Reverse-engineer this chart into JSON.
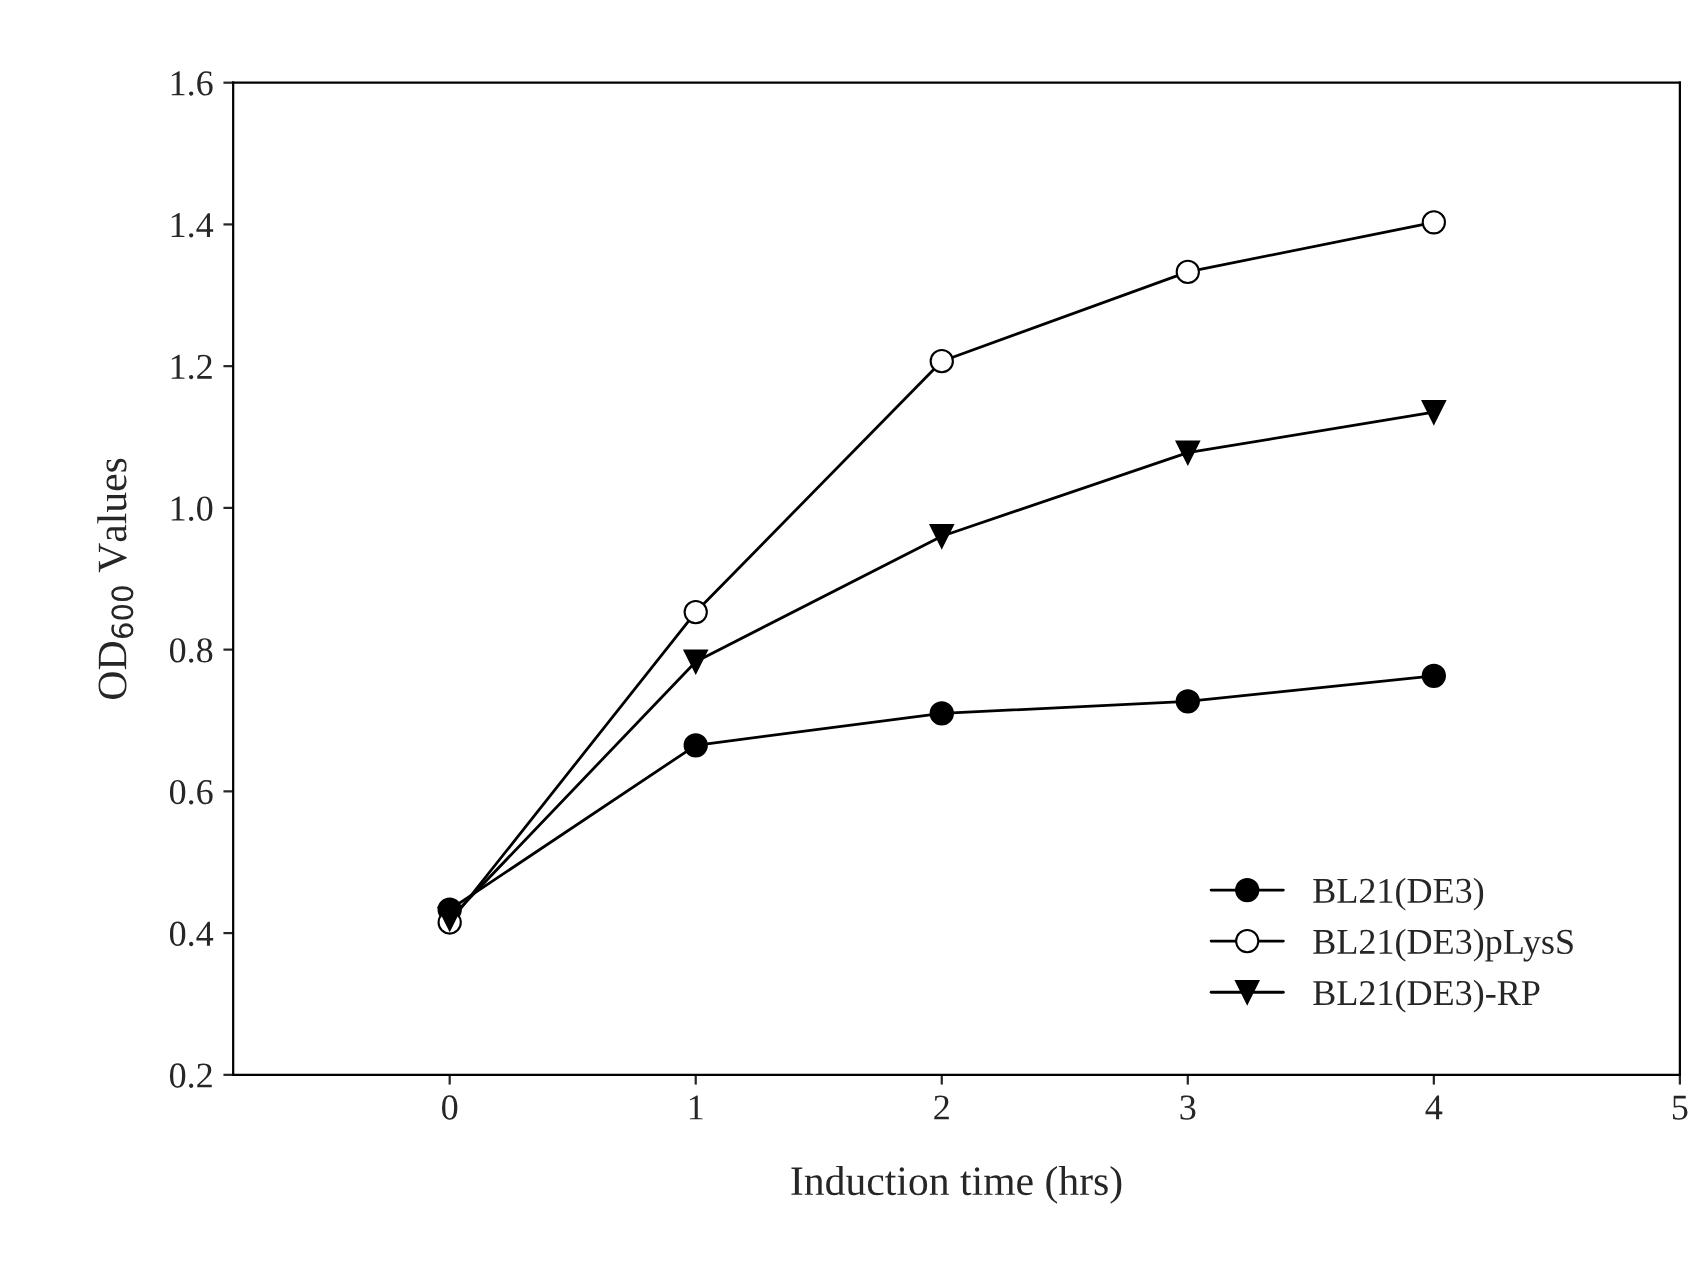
{
  "chart_data": {
    "type": "line",
    "xlabel": "Induction time (hrs)",
    "ylabel": "OD$_{600}$ Values",
    "x": [
      0,
      1,
      2,
      3,
      4
    ],
    "xlim": [
      -0.88,
      5
    ],
    "xticks": [
      0,
      1,
      2,
      3,
      4,
      5
    ],
    "ylim": [
      0.2,
      1.6
    ],
    "yticks": [
      0.2,
      0.4,
      0.6,
      0.8,
      {
        "value": 1.0,
        "label": "1.0"
      },
      1.2,
      1.4,
      1.6
    ],
    "grid": false,
    "legend": "bottom right",
    "line_style": "solid",
    "series": [
      {
        "name": "BL21(DE3)",
        "color": "#000000",
        "marker": "circle",
        "values": [
          0.433,
          0.665,
          0.71,
          0.727,
          0.763
        ]
      },
      {
        "name": "BL21(DE3)pLysS",
        "color": "#000000",
        "marker": "circle-open",
        "values": [
          0.415,
          0.853,
          1.207,
          1.333,
          1.403
        ]
      },
      {
        "name": "BL21(DE3)-RP",
        "color": "#000000",
        "marker": "triangle",
        "values": [
          0.42,
          0.783,
          0.96,
          1.078,
          1.135
        ]
      }
    ]
  }
}
